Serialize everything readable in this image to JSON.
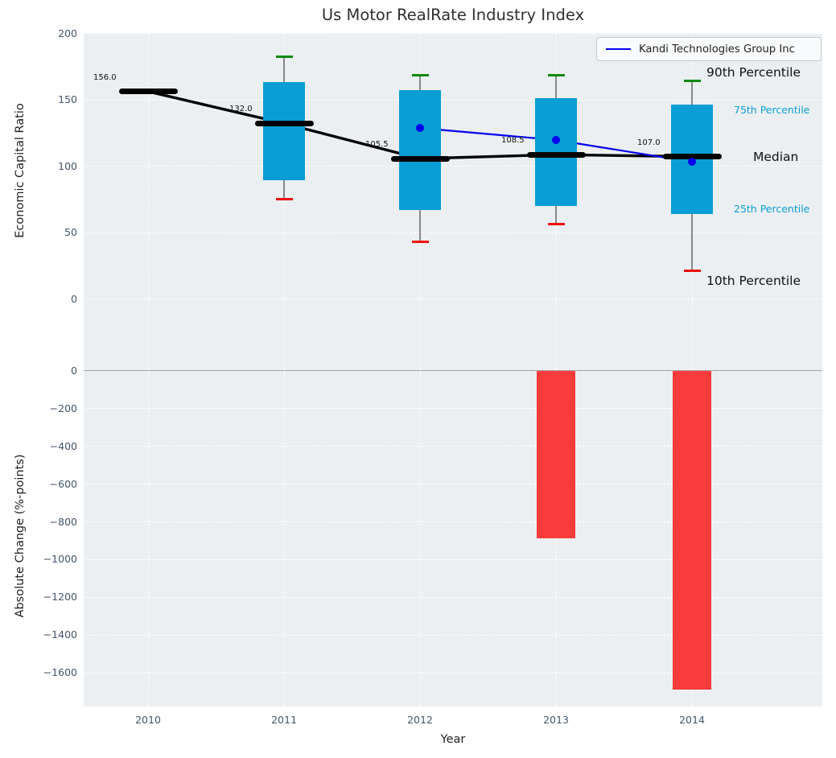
{
  "chart_data": {
    "type": "combo-boxplot-line-bar",
    "title": "Us Motor RealRate Industry Index",
    "xlabel": "Year",
    "legend": {
      "label": "Kandi Technologies Group Inc",
      "position": "upper right"
    },
    "top_panel": {
      "type": "boxplot+line",
      "ylabel": "Economic Capital Ratio",
      "ylim": [
        -53.6,
        200
      ],
      "yticks": [
        200,
        150,
        100,
        50,
        0
      ],
      "ytick_labels": [
        "200",
        "150",
        "100",
        "50",
        "0"
      ],
      "grid": true,
      "categories": [
        "2010",
        "2011",
        "2012",
        "2013",
        "2014"
      ],
      "median": [
        156.0,
        132.0,
        105.5,
        108.5,
        107.0
      ],
      "median_labels": [
        "156.0",
        "132.0",
        "105.5",
        "108.5",
        "107.0"
      ],
      "p90": [
        null,
        182,
        168,
        168,
        164
      ],
      "p75": [
        null,
        163,
        157,
        151,
        146
      ],
      "p25": [
        null,
        89,
        67,
        70,
        64
      ],
      "p10": [
        null,
        75,
        43,
        56,
        21
      ],
      "series": [
        {
          "name": "Kandi Technologies Group Inc",
          "values": [
            null,
            null,
            128.5,
            119.5,
            103
          ]
        }
      ],
      "annotations": [
        "90th Percentile",
        "75th Percentile",
        "Median",
        "25th Percentile",
        "10th Percentile"
      ]
    },
    "bottom_panel": {
      "type": "bar",
      "ylabel": "Absolute Change (%-points)",
      "ylim": [
        -1780,
        0
      ],
      "yticks": [
        0,
        -200,
        -400,
        -600,
        -800,
        -1000,
        -1200,
        -1400,
        -1600
      ],
      "ytick_labels": [
        "0",
        "−200",
        "−400",
        "−600",
        "−800",
        "−1000",
        "−1200",
        "−1400",
        "−1600"
      ],
      "grid": true,
      "categories": [
        "2010",
        "2011",
        "2012",
        "2013",
        "2014"
      ],
      "values": [
        null,
        null,
        null,
        -890,
        -1690
      ]
    }
  },
  "colors": {
    "box": "#0a9ed4",
    "kandi_line": "#0202f0",
    "median_line": "#000000",
    "bar_negative": "#fa3c3c",
    "cap_high": "#0a8a0a",
    "cap_low": "#ee1111",
    "whisker": "#888888",
    "plot_bg": "#ebeff1",
    "grid": "#ffffff",
    "tick_text": "#44546a",
    "zero_line": "#a6a6a6",
    "annotation_text": "#111111"
  }
}
